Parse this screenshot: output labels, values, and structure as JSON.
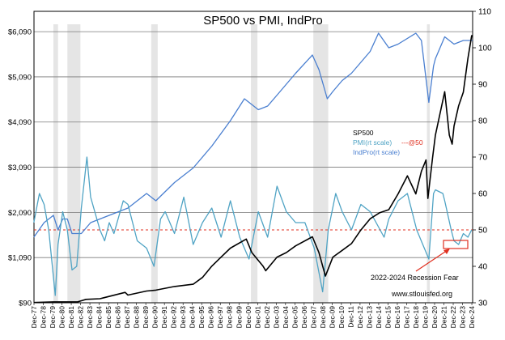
{
  "chart_data": {
    "type": "line",
    "title": "SP500 vs PMI, IndPro",
    "left_axis": {
      "ticks": [
        90,
        1090,
        2090,
        3090,
        4090,
        5090,
        6090
      ],
      "tick_labels": [
        "$90",
        "$1,090",
        "$2,090",
        "$3,090",
        "$4,090",
        "$5,090",
        "$6,090"
      ],
      "ylim": [
        90,
        6540
      ]
    },
    "right_axis": {
      "ticks": [
        30,
        40,
        50,
        60,
        70,
        80,
        90,
        100,
        110
      ],
      "tick_labels": [
        "30",
        "40",
        "50",
        "60",
        "70",
        "80",
        "90",
        "100",
        "110"
      ],
      "ylim": [
        30,
        110
      ]
    },
    "x_axis": {
      "range": [
        1977.917,
        2025.0
      ],
      "tick_labels": [
        "Dec-77",
        "Dec-78",
        "Dec-79",
        "Dec-80",
        "Dec-81",
        "Dec-82",
        "Dec-83",
        "Dec-84",
        "Dec-85",
        "Dec-86",
        "Dec-87",
        "Dec-88",
        "Dec-89",
        "Dec-90",
        "Dec-91",
        "Dec-92",
        "Dec-93",
        "Dec-94",
        "Dec-95",
        "Dec-96",
        "Dec-97",
        "Dec-98",
        "Dec-99",
        "Dec-00",
        "Dec-01",
        "Dec-02",
        "Dec-03",
        "Dec-04",
        "Dec-05",
        "Dec-06",
        "Dec-07",
        "Dec-08",
        "Dec-09",
        "Dec-10",
        "Dec-11",
        "Dec-12",
        "Dec-13",
        "Dec-14",
        "Dec-15",
        "Dec-16",
        "Dec-17",
        "Dec-18",
        "Dec-19",
        "Dec-20",
        "Dec-21",
        "Dec-22",
        "Dec-23",
        "Dec-24"
      ]
    },
    "recessions": [
      [
        1980.0,
        1980.5
      ],
      [
        1981.5,
        1982.9
      ],
      [
        1990.5,
        1991.2
      ],
      [
        2001.2,
        2001.9
      ],
      [
        2007.9,
        2009.5
      ],
      [
        2020.1,
        2020.4
      ]
    ],
    "reference_line": {
      "value": 50,
      "axis": "right",
      "color": "#e03020"
    },
    "series": [
      {
        "name": "SP500",
        "axis": "left",
        "color": "#000000",
        "points": [
          [
            1977.9,
            95
          ],
          [
            1980,
            110
          ],
          [
            1982.6,
            110
          ],
          [
            1983.5,
            165
          ],
          [
            1985,
            180
          ],
          [
            1987.7,
            320
          ],
          [
            1988,
            260
          ],
          [
            1990,
            350
          ],
          [
            1991,
            370
          ],
          [
            1993,
            450
          ],
          [
            1995,
            500
          ],
          [
            1996,
            650
          ],
          [
            1997,
            900
          ],
          [
            1998,
            1100
          ],
          [
            1999,
            1300
          ],
          [
            2000.7,
            1500
          ],
          [
            2001.3,
            1200
          ],
          [
            2002.5,
            900
          ],
          [
            2002.8,
            800
          ],
          [
            2004,
            1100
          ],
          [
            2005,
            1200
          ],
          [
            2006,
            1350
          ],
          [
            2007.8,
            1550
          ],
          [
            2008.5,
            1200
          ],
          [
            2009.2,
            680
          ],
          [
            2010,
            1100
          ],
          [
            2011,
            1250
          ],
          [
            2012,
            1400
          ],
          [
            2013,
            1700
          ],
          [
            2014,
            1950
          ],
          [
            2015,
            2080
          ],
          [
            2016,
            2150
          ],
          [
            2017,
            2500
          ],
          [
            2018,
            2900
          ],
          [
            2018.9,
            2500
          ],
          [
            2019.5,
            3000
          ],
          [
            2020,
            3250
          ],
          [
            2020.2,
            2400
          ],
          [
            2020.7,
            3300
          ],
          [
            2021,
            3800
          ],
          [
            2022,
            4760
          ],
          [
            2022.5,
            3800
          ],
          [
            2022.8,
            3600
          ],
          [
            2023,
            4000
          ],
          [
            2023.5,
            4450
          ],
          [
            2024,
            4750
          ],
          [
            2024.5,
            5500
          ],
          [
            2024.9,
            6000
          ],
          [
            2025,
            6000
          ]
        ]
      },
      {
        "name": "PMI(rt scale)",
        "axis": "right",
        "color": "#4fa3c4",
        "points": [
          [
            1977.9,
            52
          ],
          [
            1978.5,
            60
          ],
          [
            1979,
            57
          ],
          [
            1979.5,
            50
          ],
          [
            1980.2,
            32
          ],
          [
            1980.5,
            46
          ],
          [
            1981,
            55
          ],
          [
            1981.5,
            50
          ],
          [
            1982,
            39
          ],
          [
            1982.5,
            40
          ],
          [
            1983,
            56
          ],
          [
            1983.6,
            70
          ],
          [
            1984,
            59
          ],
          [
            1985,
            50
          ],
          [
            1985.5,
            47
          ],
          [
            1986,
            52
          ],
          [
            1986.5,
            49
          ],
          [
            1987.5,
            58
          ],
          [
            1988,
            57
          ],
          [
            1989,
            47
          ],
          [
            1990,
            45
          ],
          [
            1990.8,
            40
          ],
          [
            1991.5,
            53
          ],
          [
            1992,
            55
          ],
          [
            1993,
            49
          ],
          [
            1994,
            59
          ],
          [
            1995,
            46
          ],
          [
            1996,
            52
          ],
          [
            1997,
            56
          ],
          [
            1998,
            48
          ],
          [
            1999,
            58
          ],
          [
            2000,
            48
          ],
          [
            2001,
            42
          ],
          [
            2002,
            55
          ],
          [
            2003,
            48
          ],
          [
            2004,
            62
          ],
          [
            2005,
            55
          ],
          [
            2006,
            52
          ],
          [
            2007,
            52
          ],
          [
            2008,
            45
          ],
          [
            2008.9,
            33
          ],
          [
            2009.5,
            50
          ],
          [
            2010.3,
            60
          ],
          [
            2011,
            55
          ],
          [
            2012,
            50
          ],
          [
            2013,
            57
          ],
          [
            2014,
            55
          ],
          [
            2015.5,
            48
          ],
          [
            2016,
            53
          ],
          [
            2017,
            58
          ],
          [
            2018,
            60
          ],
          [
            2019,
            50
          ],
          [
            2020.3,
            42
          ],
          [
            2020.8,
            60
          ],
          [
            2021,
            61
          ],
          [
            2021.8,
            60
          ],
          [
            2022,
            58
          ],
          [
            2022.7,
            50
          ],
          [
            2023,
            47
          ],
          [
            2023.5,
            46
          ],
          [
            2024,
            49
          ],
          [
            2024.5,
            48
          ],
          [
            2024.9,
            50
          ]
        ]
      },
      {
        "name": "IndPro(rt scale)",
        "axis": "right",
        "color": "#4a7fd0",
        "points": [
          [
            1977.9,
            48
          ],
          [
            1979,
            52
          ],
          [
            1980,
            54
          ],
          [
            1980.5,
            50
          ],
          [
            1981,
            53
          ],
          [
            1981.5,
            53
          ],
          [
            1982,
            49
          ],
          [
            1983,
            49
          ],
          [
            1984,
            52
          ],
          [
            1985,
            53
          ],
          [
            1986,
            54
          ],
          [
            1988,
            56
          ],
          [
            1989,
            58
          ],
          [
            1990,
            60
          ],
          [
            1991,
            58
          ],
          [
            1993,
            63
          ],
          [
            1995,
            67
          ],
          [
            1997,
            73
          ],
          [
            1999,
            80
          ],
          [
            2000.5,
            86
          ],
          [
            2001.5,
            84
          ],
          [
            2002,
            83
          ],
          [
            2003,
            84
          ],
          [
            2004,
            87
          ],
          [
            2006,
            93
          ],
          [
            2007.8,
            98
          ],
          [
            2008.5,
            94
          ],
          [
            2009.4,
            86
          ],
          [
            2010,
            88
          ],
          [
            2011,
            91
          ],
          [
            2012,
            93
          ],
          [
            2014,
            99
          ],
          [
            2014.9,
            104
          ],
          [
            2016,
            100
          ],
          [
            2017,
            101
          ],
          [
            2018.9,
            104
          ],
          [
            2019.5,
            102
          ],
          [
            2020.3,
            85
          ],
          [
            2020.8,
            95
          ],
          [
            2021,
            97
          ],
          [
            2022,
            103
          ],
          [
            2023,
            101
          ],
          [
            2024,
            102
          ],
          [
            2025,
            102
          ]
        ]
      }
    ],
    "legend": {
      "items": [
        "SP500",
        "PMI(rt scale)",
        "---@50",
        "IndPro(rt scale)"
      ],
      "placement": "center-right"
    },
    "annotations": {
      "recession_fear": "2022-2024 Recession Fear",
      "source": "www.stlouisfed.org"
    }
  }
}
